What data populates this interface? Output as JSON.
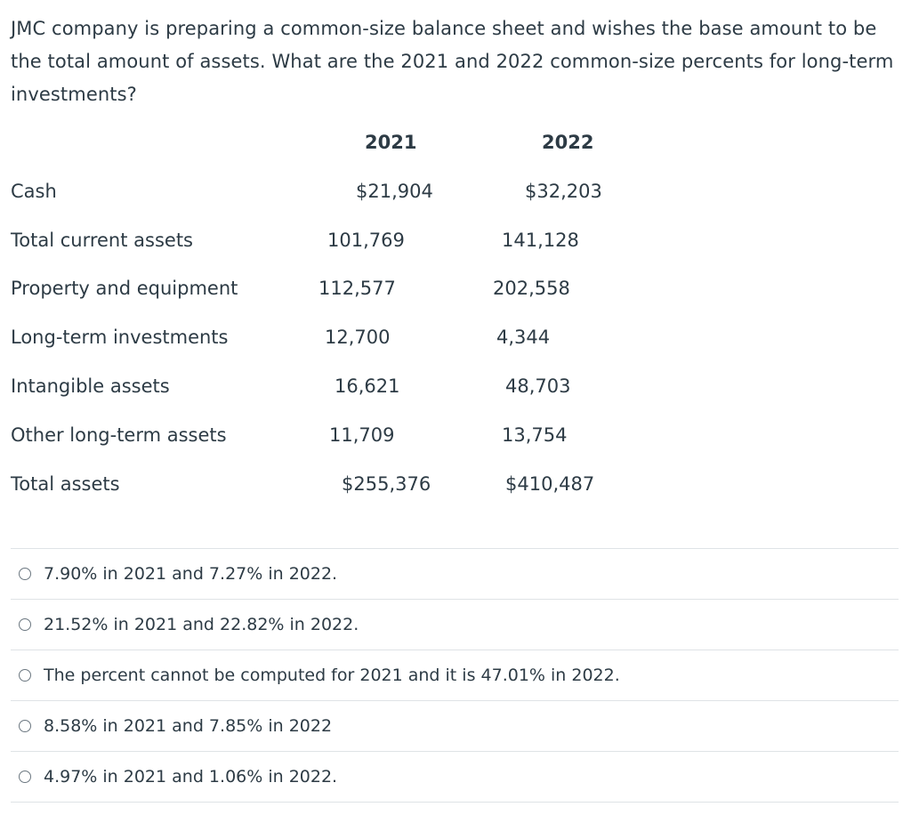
{
  "question": {
    "text": "JMC company is preparing a common-size balance sheet and wishes the base amount to be the total amount of assets. What are the 2021 and 2022 common-size percents for long-term investments?"
  },
  "table": {
    "headers": [
      "2021",
      "2022"
    ],
    "rows": [
      {
        "label": "Cash",
        "v2021": "$21,904",
        "v2022": "$32,203"
      },
      {
        "label": "Total current assets",
        "v2021": "101,769",
        "v2022": "141,128"
      },
      {
        "label": "Property and equipment",
        "v2021": "112,577",
        "v2022": "202,558"
      },
      {
        "label": "Long-term investments",
        "v2021": "12,700",
        "v2022": "4,344"
      },
      {
        "label": "Intangible assets",
        "v2021": "16,621",
        "v2022": "48,703"
      },
      {
        "label": "Other long-term assets",
        "v2021": "11,709",
        "v2022": "13,754"
      },
      {
        "label": "Total assets",
        "v2021": "$255,376",
        "v2022": "$410,487"
      }
    ]
  },
  "answers": [
    "7.90% in 2021 and 7.27% in 2022.",
    "21.52% in 2021 and 22.82% in 2022.",
    "The percent cannot be computed for 2021 and it is 47.01% in 2022.",
    "8.58% in 2021 and 7.85% in 2022",
    "4.97% in 2021 and 1.06% in 2022."
  ]
}
